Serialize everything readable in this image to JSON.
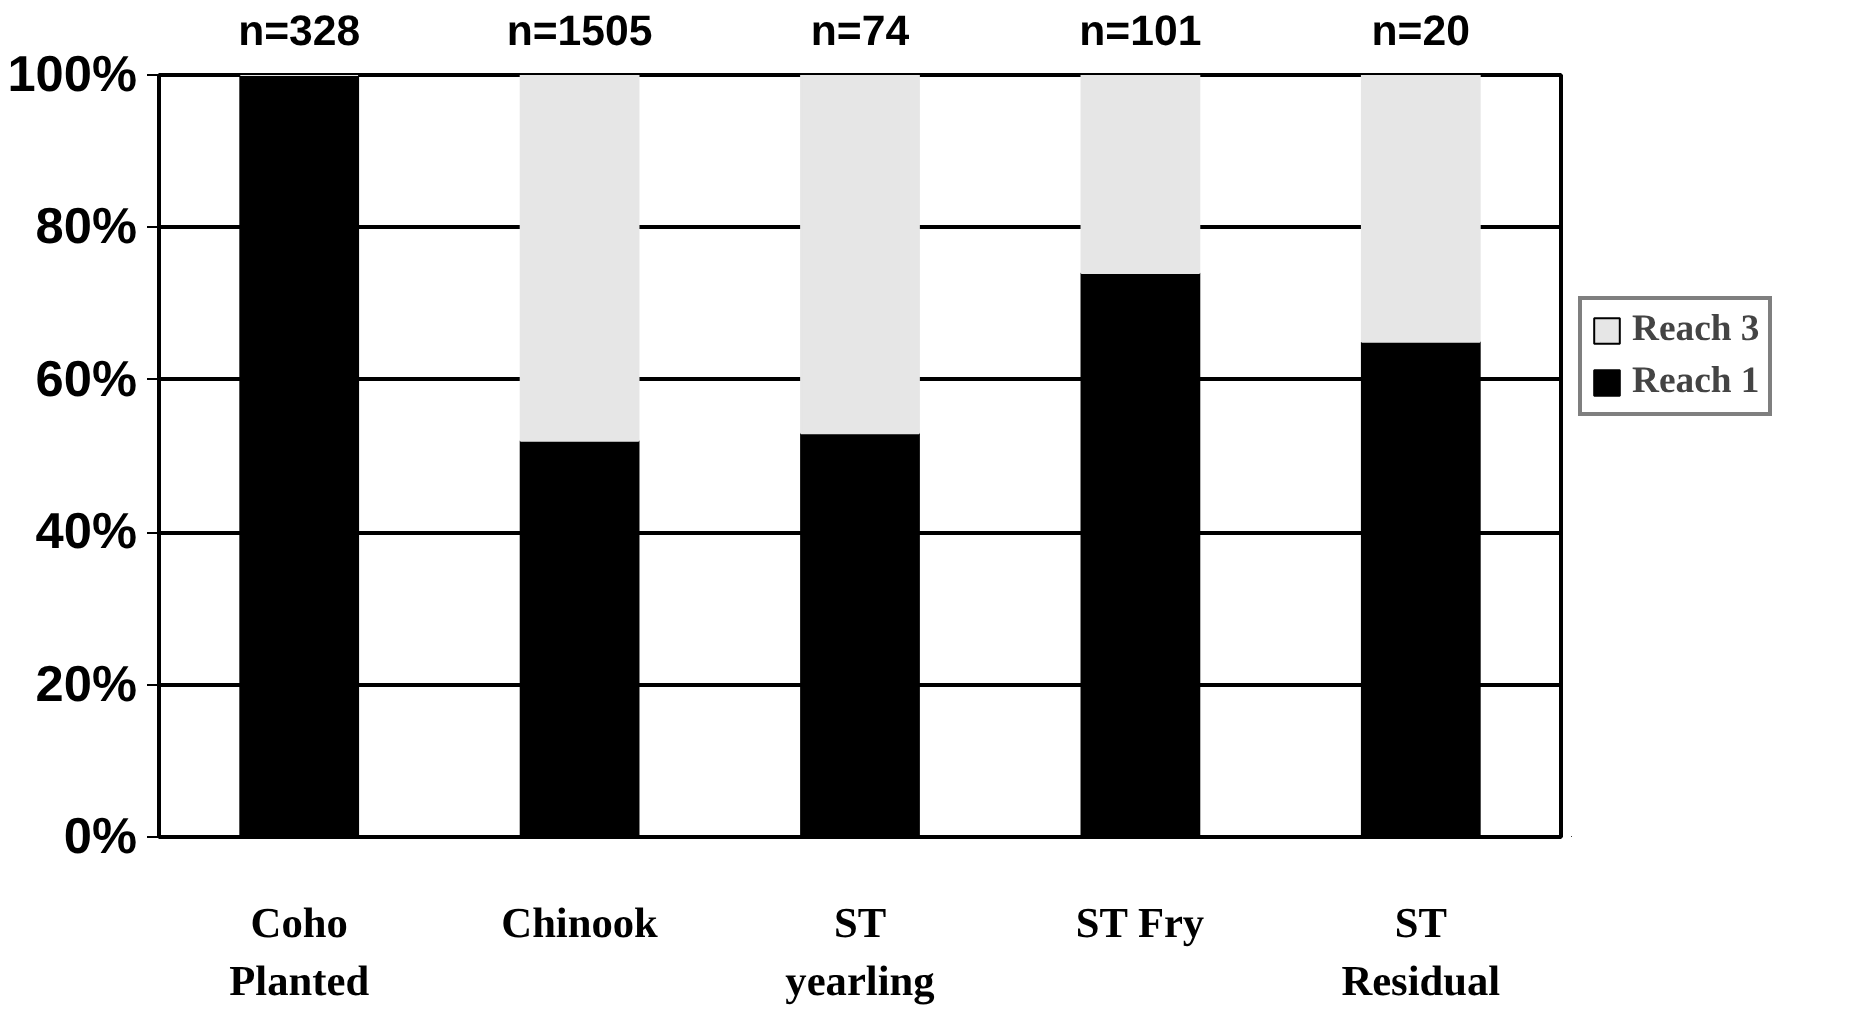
{
  "chart_data": {
    "type": "bar",
    "stacked": true,
    "categories": [
      "Coho\nPlanted",
      "Chinook",
      "ST\nyearling",
      "ST Fry",
      "ST\nResidual"
    ],
    "series": [
      {
        "name": "Reach 1",
        "color": "#000000",
        "values": [
          100,
          52,
          53,
          74,
          65
        ]
      },
      {
        "name": "Reach 3",
        "color": "#e6e6e6",
        "values": [
          0,
          48,
          47,
          26,
          35
        ]
      }
    ],
    "ylim": [
      0,
      100
    ],
    "yticks": [
      {
        "value": 0,
        "label": "0%"
      },
      {
        "value": 20,
        "label": "20%"
      },
      {
        "value": 40,
        "label": "40%"
      },
      {
        "value": 60,
        "label": "60%"
      },
      {
        "value": 80,
        "label": "80%"
      },
      {
        "value": 100,
        "label": "100%"
      }
    ],
    "grid": "y",
    "legend": "right",
    "annotations": [
      {
        "text": "n=328",
        "x": "Coho\nPlanted",
        "y": 100
      },
      {
        "text": "n=1505",
        "x": "Chinook",
        "y": 100
      },
      {
        "text": "n=74",
        "x": "ST\nyearling",
        "y": 100
      },
      {
        "text": "n=101",
        "x": "ST Fry",
        "y": 100
      },
      {
        "text": "n=20",
        "x": "ST\nResidual",
        "y": 100
      }
    ]
  }
}
